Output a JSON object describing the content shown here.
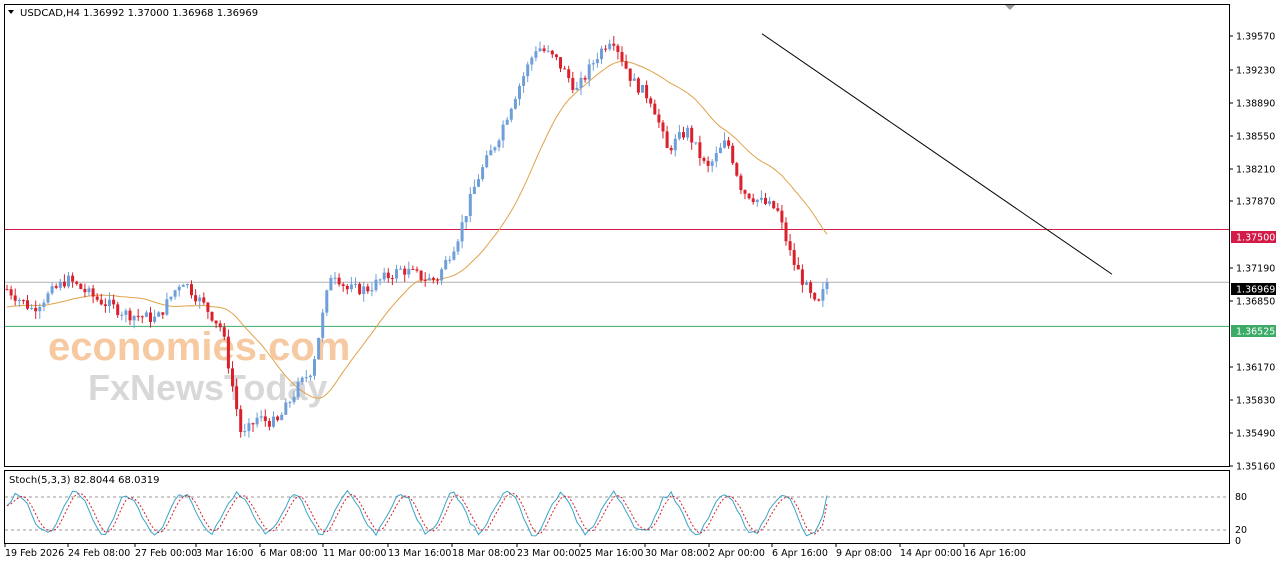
{
  "header": {
    "symbol_info": "USDCAD,H4  1.36992 1.37000 1.36968 1.36969",
    "stoch_info": "Stoch(5,3,3) 82.8044 68.0319"
  },
  "watermark": {
    "line1": "economies.com",
    "line2": "FxNewsToday"
  },
  "colors": {
    "bull": "#6f9fd8",
    "bear": "#d9202b",
    "ma": "#e0a24b",
    "resistance": "#d31b48",
    "support": "#3bab66",
    "current": "#b0b0b0",
    "stoch_main": "#3aa4c8",
    "stoch_signal": "#d9202b"
  },
  "chart_data": {
    "type": "candlestick",
    "symbol": "USDCAD",
    "timeframe": "H4",
    "ylim": [
      1.3516,
      1.3602
    ],
    "price_ticks": [
      "1.39570",
      "1.39230",
      "1.38890",
      "1.38550",
      "1.38210",
      "1.37870",
      "1.37190",
      "1.36850",
      "1.36170",
      "1.35830",
      "1.35490",
      "1.35160"
    ],
    "x_labels": [
      "19 Feb 2026",
      "24 Feb 08:00",
      "27 Feb 00:00",
      "3 Mar 16:00",
      "6 Mar 08:00",
      "11 Mar 00:00",
      "13 Mar 16:00",
      "18 Mar 08:00",
      "23 Mar 00:00",
      "25 Mar 16:00",
      "30 Mar 08:00",
      "2 Apr 00:00",
      "6 Apr 16:00",
      "9 Apr 08:00",
      "14 Apr 00:00",
      "16 Apr 16:00"
    ],
    "levels": {
      "resistance": {
        "value": 1.375,
        "label": "1.37500"
      },
      "current": {
        "value": 1.36969,
        "label": "1.36969"
      },
      "support": {
        "value": 1.36525,
        "label": "1.36525"
      }
    },
    "trendline": {
      "from": [
        0.6,
        1.3947
      ],
      "to": [
        1.0,
        1.3705
      ]
    },
    "path_anchors": [
      [
        0.0,
        1.369
      ],
      [
        0.025,
        1.367
      ],
      [
        0.06,
        1.37
      ],
      [
        0.09,
        1.368
      ],
      [
        0.12,
        1.3665
      ],
      [
        0.15,
        1.366
      ],
      [
        0.175,
        1.37
      ],
      [
        0.2,
        1.367
      ],
      [
        0.215,
        1.365
      ],
      [
        0.235,
        1.354
      ],
      [
        0.25,
        1.356
      ],
      [
        0.27,
        1.3555
      ],
      [
        0.29,
        1.359
      ],
      [
        0.305,
        1.361
      ],
      [
        0.315,
        1.366
      ],
      [
        0.325,
        1.371
      ],
      [
        0.34,
        1.369
      ],
      [
        0.36,
        1.369
      ],
      [
        0.375,
        1.37
      ],
      [
        0.395,
        1.371
      ],
      [
        0.42,
        1.37
      ],
      [
        0.43,
        1.37
      ],
      [
        0.45,
        1.374
      ],
      [
        0.47,
        1.38
      ],
      [
        0.49,
        1.384
      ],
      [
        0.51,
        1.389
      ],
      [
        0.53,
        1.3935
      ],
      [
        0.55,
        1.392
      ],
      [
        0.57,
        1.389
      ],
      [
        0.59,
        1.3925
      ],
      [
        0.605,
        1.3945
      ],
      [
        0.625,
        1.39
      ],
      [
        0.645,
        1.388
      ],
      [
        0.66,
        1.383
      ],
      [
        0.68,
        1.385
      ],
      [
        0.7,
        1.381
      ],
      [
        0.72,
        1.384
      ],
      [
        0.735,
        1.379
      ],
      [
        0.75,
        1.378
      ],
      [
        0.77,
        1.377
      ],
      [
        0.785,
        1.372
      ],
      [
        0.8,
        1.369
      ],
      [
        0.81,
        1.367
      ],
      [
        0.82,
        1.3697
      ]
    ],
    "stochastic": {
      "k": 82.8044,
      "d": 68.0319,
      "levels": [
        80,
        20
      ],
      "range": [
        0,
        100
      ],
      "ticks": [
        "80",
        "20",
        "0"
      ]
    }
  }
}
